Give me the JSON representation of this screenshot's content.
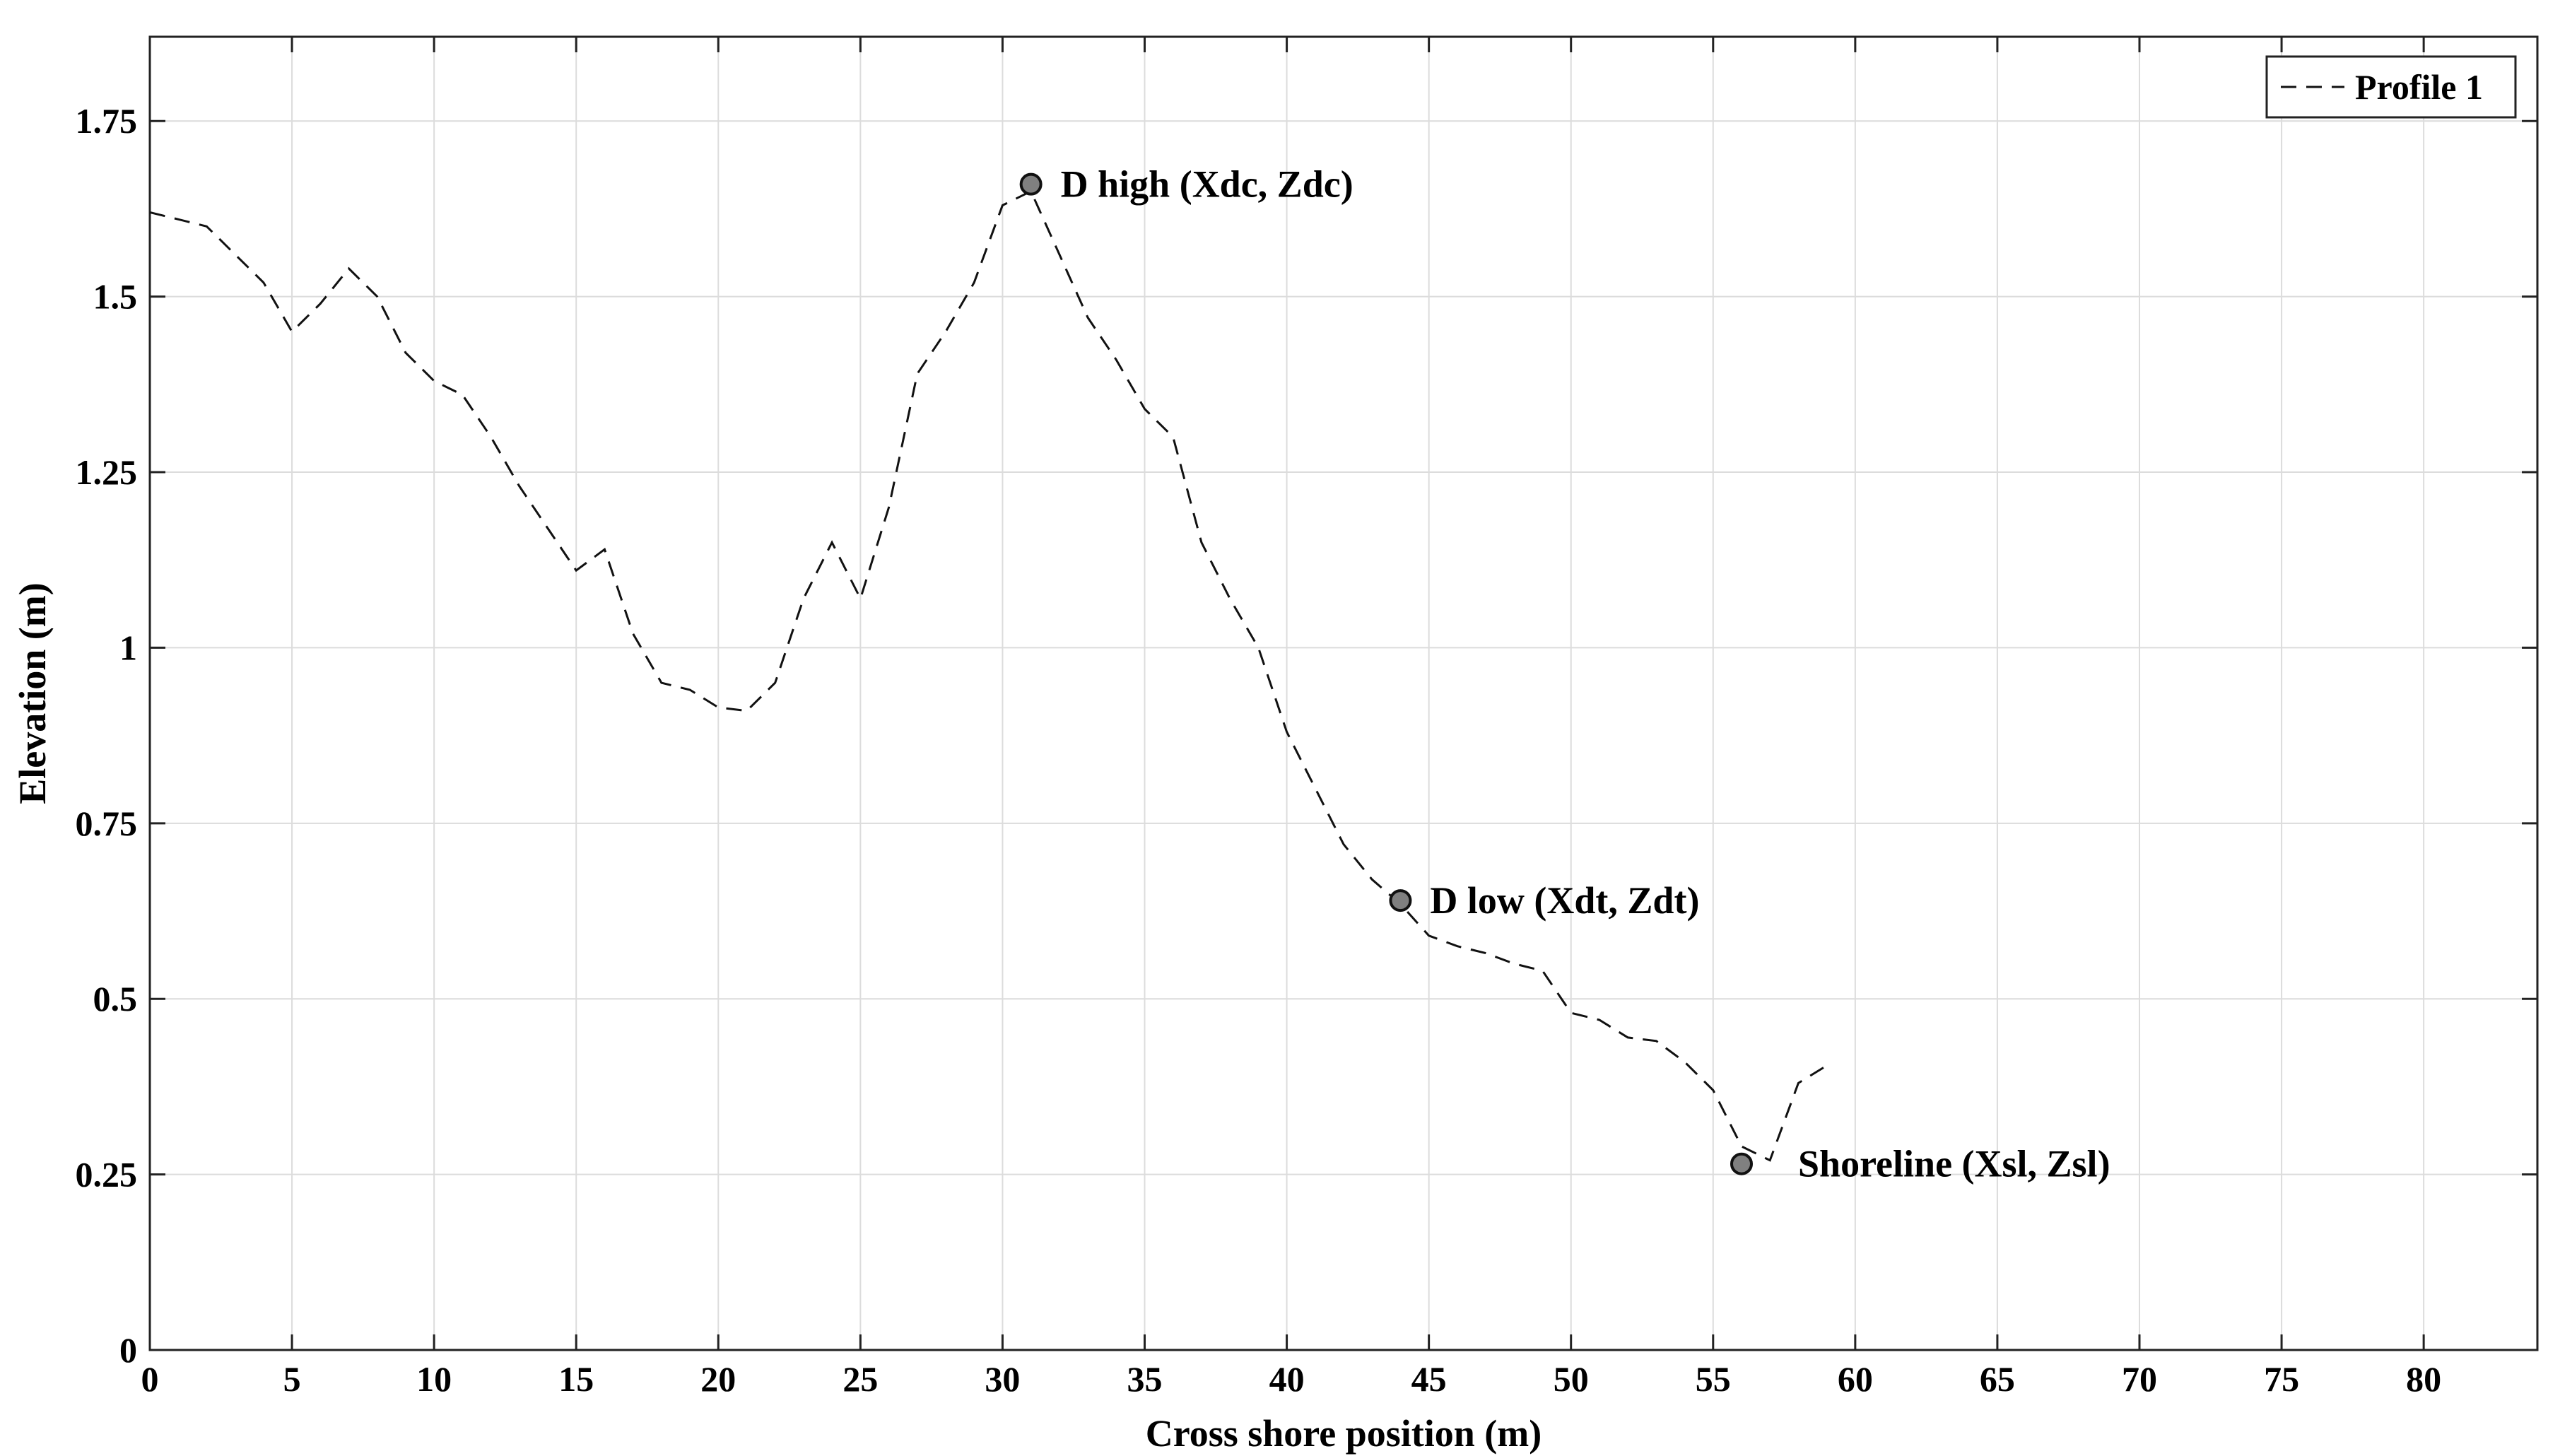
{
  "chart_data": {
    "type": "line",
    "xlabel": "Cross shore position (m)",
    "ylabel": "Elevation (m)",
    "xlim": [
      0,
      84
    ],
    "ylim": [
      0,
      1.87
    ],
    "xticks": [
      0,
      5,
      10,
      15,
      20,
      25,
      30,
      35,
      40,
      45,
      50,
      55,
      60,
      65,
      70,
      75,
      80
    ],
    "yticks": [
      0,
      0.25,
      0.5,
      0.75,
      1,
      1.25,
      1.5,
      1.75
    ],
    "ytick_labels": [
      "0",
      "0.25",
      "0.5",
      "0.75",
      "1",
      "1.25",
      "1.5",
      "1.75"
    ],
    "grid": true,
    "legend_position": "top-right",
    "series": [
      {
        "name": "Profile 1",
        "line_style": "dashed",
        "color": "#111111",
        "x": [
          0,
          1,
          2,
          3,
          4,
          5,
          6,
          7,
          8,
          9,
          10,
          11,
          12,
          13,
          14,
          15,
          16,
          17,
          18,
          19,
          20,
          21,
          22,
          23,
          24,
          25,
          26,
          27,
          28,
          29,
          30,
          31,
          32,
          33,
          34,
          35,
          36,
          37,
          38,
          39,
          40,
          41,
          42,
          43,
          44,
          45,
          46,
          47,
          48,
          49,
          50,
          51,
          52,
          53,
          54,
          55,
          56,
          57,
          58,
          59
        ],
        "y": [
          1.62,
          1.61,
          1.6,
          1.56,
          1.52,
          1.45,
          1.49,
          1.54,
          1.5,
          1.42,
          1.38,
          1.36,
          1.3,
          1.23,
          1.17,
          1.11,
          1.14,
          1.02,
          0.95,
          0.94,
          0.915,
          0.91,
          0.95,
          1.07,
          1.15,
          1.07,
          1.2,
          1.39,
          1.45,
          1.52,
          1.63,
          1.65,
          1.56,
          1.47,
          1.41,
          1.34,
          1.3,
          1.15,
          1.07,
          1.0,
          0.88,
          0.8,
          0.72,
          0.67,
          0.635,
          0.59,
          0.575,
          0.565,
          0.55,
          0.54,
          0.48,
          0.47,
          0.445,
          0.44,
          0.41,
          0.37,
          0.29,
          0.27,
          0.38,
          0.405
        ]
      }
    ],
    "annotations": [
      {
        "label": "D high (Xdc, Zdc)",
        "x": 31,
        "y": 1.66
      },
      {
        "label": "D low (Xdt, Zdt)",
        "x": 44,
        "y": 0.64
      },
      {
        "label": "Shoreline (Xsl, Zsl)",
        "x": 56,
        "y": 0.265
      }
    ]
  }
}
